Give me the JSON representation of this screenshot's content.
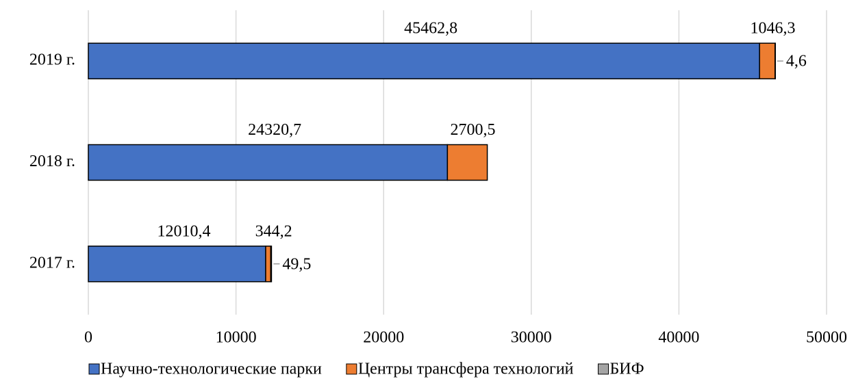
{
  "chart_data": {
    "type": "stacked-hbar",
    "categories": [
      "2017 г.",
      "2018 г.",
      "2019 г."
    ],
    "series": [
      {
        "name": "Научно-технологические парки",
        "color": "#4472c4",
        "values": [
          12010.4,
          24320.7,
          45462.8
        ],
        "value_labels": [
          "12010,4",
          "24320,7",
          "45462,8"
        ]
      },
      {
        "name": "Центры трансфера технологий",
        "color": "#ed7d31",
        "values": [
          344.2,
          2700.5,
          1046.3
        ],
        "value_labels": [
          "344,2",
          "2700,5",
          "1046,3"
        ]
      },
      {
        "name": "БИФ",
        "color": "#a5a5a5",
        "values": [
          49.5,
          null,
          4.6
        ],
        "value_labels": [
          "49,5",
          null,
          "4,6"
        ]
      }
    ],
    "xlim": [
      0,
      50000
    ],
    "xticks": [
      0,
      10000,
      20000,
      30000,
      40000,
      50000
    ],
    "grid": true,
    "legend": "bottom"
  }
}
